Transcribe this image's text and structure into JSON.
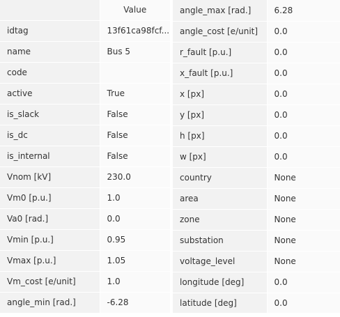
{
  "left_table": {
    "header": {
      "value_col": "Value"
    },
    "rows": [
      {
        "key": "idtag",
        "value": "13f61ca98fcf..."
      },
      {
        "key": "name",
        "value": "Bus 5"
      },
      {
        "key": "code",
        "value": ""
      },
      {
        "key": "active",
        "value": "True"
      },
      {
        "key": "is_slack",
        "value": "False"
      },
      {
        "key": "is_dc",
        "value": "False"
      },
      {
        "key": "is_internal",
        "value": "False"
      },
      {
        "key": "Vnom [kV]",
        "value": "230.0"
      },
      {
        "key": "Vm0 [p.u.]",
        "value": "1.0"
      },
      {
        "key": "Va0 [rad.]",
        "value": "0.0"
      },
      {
        "key": "Vmin [p.u.]",
        "value": "0.95"
      },
      {
        "key": "Vmax [p.u.]",
        "value": "1.05"
      },
      {
        "key": "Vm_cost [e/unit]",
        "value": "1.0"
      },
      {
        "key": "angle_min [rad.]",
        "value": "-6.28"
      }
    ]
  },
  "right_table": {
    "rows": [
      {
        "key": "angle_max [rad.]",
        "value": "6.28"
      },
      {
        "key": "angle_cost [e/unit]",
        "value": "0.0"
      },
      {
        "key": "r_fault [p.u.]",
        "value": "0.0"
      },
      {
        "key": "x_fault [p.u.]",
        "value": "0.0"
      },
      {
        "key": "x [px]",
        "value": "0.0"
      },
      {
        "key": "y [px]",
        "value": "0.0"
      },
      {
        "key": "h [px]",
        "value": "0.0"
      },
      {
        "key": "w [px]",
        "value": "0.0"
      },
      {
        "key": "country",
        "value": "None"
      },
      {
        "key": "area",
        "value": "None"
      },
      {
        "key": "zone",
        "value": "None"
      },
      {
        "key": "substation",
        "value": "None"
      },
      {
        "key": "voltage_level",
        "value": "None"
      },
      {
        "key": "longitude [deg]",
        "value": "0.0"
      },
      {
        "key": "latitude [deg]",
        "value": "0.0"
      }
    ]
  }
}
